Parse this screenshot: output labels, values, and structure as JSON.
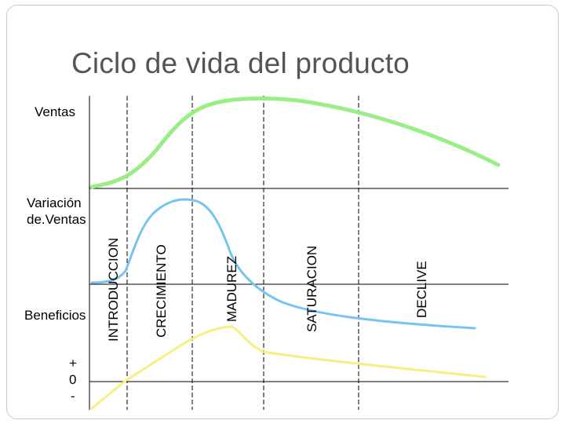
{
  "title": "Ciclo de vida del producto",
  "row_labels": {
    "ventas": "Ventas",
    "variacion_line1": "Variación",
    "variacion_line2": "de.Ventas",
    "beneficios": "Beneficios",
    "plus": "+",
    "zero": "0",
    "minus": "-"
  },
  "phases": [
    {
      "key": "introduccion",
      "label": "INTRODUCCION"
    },
    {
      "key": "crecimiento",
      "label": "CRECIMIENTO"
    },
    {
      "key": "madurez",
      "label": "MADUREZ"
    },
    {
      "key": "saturacion",
      "label": "SATURACION"
    },
    {
      "key": "declive",
      "label": "DECLIVE"
    }
  ],
  "colors": {
    "ventas": "#99ee88",
    "variacion": "#66bbee",
    "beneficios": "#f5f080",
    "title": "#555555",
    "axes": "#000000"
  }
}
